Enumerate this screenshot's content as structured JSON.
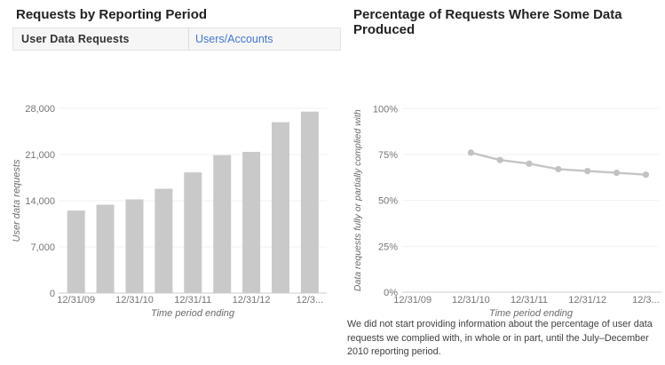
{
  "left_panel": {
    "title": "Requests by Reporting Period",
    "tabs": [
      {
        "label": "User Data Requests",
        "selected": true
      },
      {
        "label": "Users/Accounts",
        "selected": false
      }
    ]
  },
  "right_panel": {
    "title": "Percentage of Requests Where Some Data Produced",
    "footnote": "We did not start providing information about the percentage of user data requests we complied with, in whole or in part, until the July–December 2010 reporting period."
  },
  "colors": {
    "bar_fill": "#c9c9c9",
    "line_stroke": "#c5c5c5",
    "marker_fill": "#c2c2c2",
    "axis_text": "#757575",
    "axis_title": "#6b6b6b",
    "baseline": "#cccccc",
    "gridline": "#f2f2f2",
    "link_blue": "#4377d6",
    "tab_background": "#f6f6f6",
    "tab_border": "#e3e3e3"
  },
  "chart_data": [
    {
      "type": "bar",
      "title": "Requests by Reporting Period",
      "xlabel": "Time period ending",
      "ylabel": "User data requests",
      "ylim": [
        0,
        28000
      ],
      "ytick_values": [
        0,
        7000,
        14000,
        21000,
        28000
      ],
      "ytick_labels": [
        "0",
        "7,000",
        "14,000",
        "21,000",
        "28,000"
      ],
      "values": [
        12500,
        13400,
        14200,
        15800,
        18300,
        20900,
        21400,
        25900,
        27500
      ],
      "xtick_labels": [
        "12/31/09",
        "12/31/10",
        "12/31/11",
        "12/31/12",
        "12/3..."
      ],
      "xtick_bar_indices": [
        0,
        2,
        4,
        6,
        8
      ],
      "grid": "faint horizontal lines at labeled ticks",
      "legend": "none"
    },
    {
      "type": "line",
      "title": "Percentage of Requests Where Some Data Produced",
      "xlabel": "Time period ending",
      "ylabel": "Data requests fully or partially complied with",
      "ylim": [
        0,
        100
      ],
      "ytick_values": [
        0,
        25,
        50,
        75,
        100
      ],
      "ytick_labels": [
        "0%",
        "25%",
        "50%",
        "75%",
        "100%"
      ],
      "xtick_labels": [
        "12/31/09",
        "12/31/10",
        "12/31/11",
        "12/31/12",
        "12/3..."
      ],
      "values": [
        76,
        72,
        70,
        67,
        66,
        65,
        64
      ],
      "x_tick_offsets": [
        1,
        1.5,
        2,
        2.5,
        3,
        3.5,
        4
      ],
      "grid": "faint horizontal lines at labeled ticks",
      "legend": "none"
    }
  ]
}
